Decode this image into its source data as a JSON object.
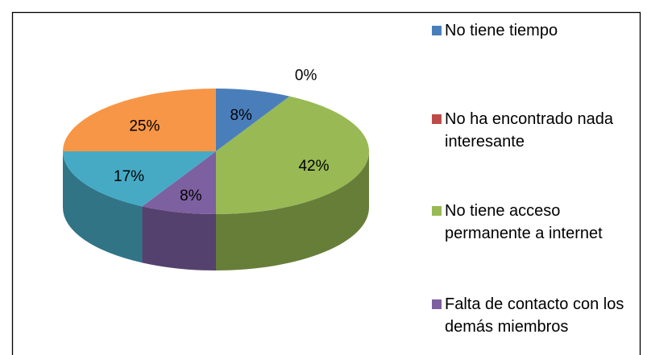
{
  "chart_data": {
    "type": "pie3d",
    "categories": [
      "No tiene tiempo",
      "No ha encontrado nada interesante",
      "No tiene acceso permanente a internet",
      "Falta de contacto con los demás miembros",
      null,
      null
    ],
    "values": [
      8,
      0,
      42,
      8,
      17,
      25
    ],
    "value_labels": [
      "8%",
      "0%",
      "42%",
      "8%",
      "17%",
      "25%"
    ],
    "colors": [
      "#4a7ebb",
      "#be4b48",
      "#98b954",
      "#7d60a0",
      "#46aac5",
      "#f79646"
    ],
    "legend": "right"
  }
}
